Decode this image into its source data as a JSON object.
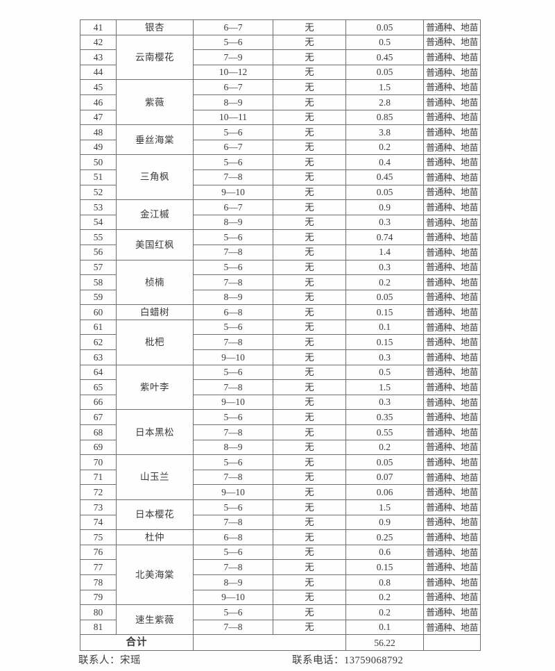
{
  "table": {
    "border_color": "#6e6e6e",
    "rows": [
      {
        "no": "41",
        "name": "银杏",
        "name_rowspan": 1,
        "size": "6—7",
        "availability": "无",
        "quantity": "0.05",
        "spec": "普通种、地苗"
      },
      {
        "no": "42",
        "name": "云南樱花",
        "name_rowspan": 3,
        "size": "5—6",
        "availability": "无",
        "quantity": "0.5",
        "spec": "普通种、地苗"
      },
      {
        "no": "43",
        "size": "7—9",
        "availability": "无",
        "quantity": "0.45",
        "spec": "普通种、地苗"
      },
      {
        "no": "44",
        "size": "10—12",
        "availability": "无",
        "quantity": "0.05",
        "spec": "普通种、地苗"
      },
      {
        "no": "45",
        "name": "紫薇",
        "name_rowspan": 3,
        "size": "6—7",
        "availability": "无",
        "quantity": "1.5",
        "spec": "普通种、地苗"
      },
      {
        "no": "46",
        "size": "8—9",
        "availability": "无",
        "quantity": "2.8",
        "spec": "普通种、地苗"
      },
      {
        "no": "47",
        "size": "10—11",
        "availability": "无",
        "quantity": "0.85",
        "spec": "普通种、地苗"
      },
      {
        "no": "48",
        "name": "垂丝海棠",
        "name_rowspan": 2,
        "size": "5—6",
        "availability": "无",
        "quantity": "3.8",
        "spec": "普通种、地苗"
      },
      {
        "no": "49",
        "size": "6—7",
        "availability": "无",
        "quantity": "0.2",
        "spec": "普通种、地苗"
      },
      {
        "no": "50",
        "name": "三角枫",
        "name_rowspan": 3,
        "size": "5—6",
        "availability": "无",
        "quantity": "0.4",
        "spec": "普通种、地苗"
      },
      {
        "no": "51",
        "size": "7—8",
        "availability": "无",
        "quantity": "0.45",
        "spec": "普通种、地苗"
      },
      {
        "no": "52",
        "size": "9—10",
        "availability": "无",
        "quantity": "0.05",
        "spec": "普通种、地苗"
      },
      {
        "no": "53",
        "name": "金江槭",
        "name_rowspan": 2,
        "size": "6—7",
        "availability": "无",
        "quantity": "0.9",
        "spec": "普通种、地苗"
      },
      {
        "no": "54",
        "size": "8—9",
        "availability": "无",
        "quantity": "0.3",
        "spec": "普通种、地苗"
      },
      {
        "no": "55",
        "name": "美国红枫",
        "name_rowspan": 2,
        "size": "5—6",
        "availability": "无",
        "quantity": "0.74",
        "spec": "普通种、地苗"
      },
      {
        "no": "56",
        "size": "7—8",
        "availability": "无",
        "quantity": "1.4",
        "spec": "普通种、地苗"
      },
      {
        "no": "57",
        "name": "桢楠",
        "name_rowspan": 3,
        "size": "5—6",
        "availability": "无",
        "quantity": "0.3",
        "spec": "普通种、地苗"
      },
      {
        "no": "58",
        "size": "7—8",
        "availability": "无",
        "quantity": "0.2",
        "spec": "普通种、地苗"
      },
      {
        "no": "59",
        "size": "8—9",
        "availability": "无",
        "quantity": "0.05",
        "spec": "普通种、地苗"
      },
      {
        "no": "60",
        "name": "白蜡树",
        "name_rowspan": 1,
        "size": "6—8",
        "availability": "无",
        "quantity": "0.15",
        "spec": "普通种、地苗"
      },
      {
        "no": "61",
        "name": "枇杷",
        "name_rowspan": 3,
        "size": "5—6",
        "availability": "无",
        "quantity": "0.1",
        "spec": "普通种、地苗"
      },
      {
        "no": "62",
        "size": "7—8",
        "availability": "无",
        "quantity": "0.15",
        "spec": "普通种、地苗"
      },
      {
        "no": "63",
        "size": "9—10",
        "availability": "无",
        "quantity": "0.3",
        "spec": "普通种、地苗"
      },
      {
        "no": "64",
        "name": "紫叶李",
        "name_rowspan": 3,
        "size": "5—6",
        "availability": "无",
        "quantity": "0.5",
        "spec": "普通种、地苗"
      },
      {
        "no": "65",
        "size": "7—8",
        "availability": "无",
        "quantity": "1.5",
        "spec": "普通种、地苗"
      },
      {
        "no": "66",
        "size": "9—10",
        "availability": "无",
        "quantity": "0.3",
        "spec": "普通种、地苗"
      },
      {
        "no": "67",
        "name": "日本黑松",
        "name_rowspan": 3,
        "size": "5—6",
        "availability": "无",
        "quantity": "0.35",
        "spec": "普通种、地苗"
      },
      {
        "no": "68",
        "size": "7—8",
        "availability": "无",
        "quantity": "0.55",
        "spec": "普通种、地苗"
      },
      {
        "no": "69",
        "size": "8—9",
        "availability": "无",
        "quantity": "0.2",
        "spec": "普通种、地苗"
      },
      {
        "no": "70",
        "name": "山玉兰",
        "name_rowspan": 3,
        "size": "5—6",
        "availability": "无",
        "quantity": "0.05",
        "spec": "普通种、地苗"
      },
      {
        "no": "71",
        "size": "7—8",
        "availability": "无",
        "quantity": "0.07",
        "spec": "普通种、地苗"
      },
      {
        "no": "72",
        "size": "9—10",
        "availability": "无",
        "quantity": "0.06",
        "spec": "普通种、地苗"
      },
      {
        "no": "73",
        "name": "日本樱花",
        "name_rowspan": 2,
        "size": "5—6",
        "availability": "无",
        "quantity": "1.5",
        "spec": "普通种、地苗"
      },
      {
        "no": "74",
        "size": "7—8",
        "availability": "无",
        "quantity": "0.9",
        "spec": "普通种、地苗"
      },
      {
        "no": "75",
        "name": "杜仲",
        "name_rowspan": 1,
        "size": "6—8",
        "availability": "无",
        "quantity": "0.25",
        "spec": "普通种、地苗"
      },
      {
        "no": "76",
        "name": "北美海棠",
        "name_rowspan": 4,
        "size": "5—6",
        "availability": "无",
        "quantity": "0.6",
        "spec": "普通种、地苗"
      },
      {
        "no": "77",
        "size": "7—8",
        "availability": "无",
        "quantity": "0.15",
        "spec": "普通种、地苗"
      },
      {
        "no": "78",
        "size": "8—9",
        "availability": "无",
        "quantity": "0.8",
        "spec": "普通种、地苗"
      },
      {
        "no": "79",
        "size": "9—10",
        "availability": "无",
        "quantity": "0.2",
        "spec": "普通种、地苗"
      },
      {
        "no": "80",
        "name": "速生紫薇",
        "name_rowspan": 2,
        "size": "5—6",
        "availability": "无",
        "quantity": "0.2",
        "spec": "普通种、地苗"
      },
      {
        "no": "81",
        "size": "7—8",
        "availability": "无",
        "quantity": "0.1",
        "spec": "普通种、地苗"
      }
    ],
    "total": {
      "label": "合计",
      "quantity": "56.22"
    }
  },
  "footer": {
    "contact": "联系人：宋瑶",
    "phone": "联系电话：13759068792"
  }
}
